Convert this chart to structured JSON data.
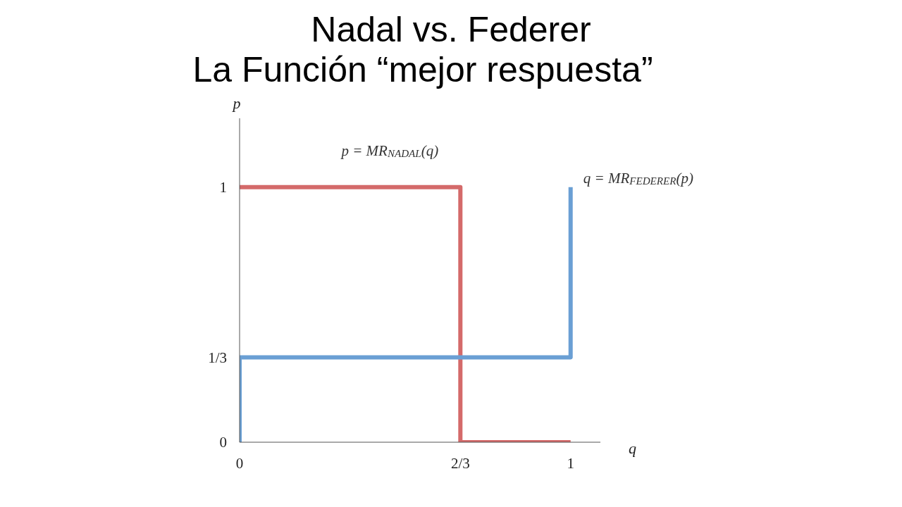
{
  "chart_data": {
    "type": "line",
    "title": "Nadal vs. Federer",
    "subtitle": "La Función “mejor respuesta”",
    "xlabel": "q",
    "ylabel": "p",
    "xlim": [
      0,
      1.09
    ],
    "ylim": [
      0,
      1.27
    ],
    "xticks": [
      0,
      {
        "value": 0.667,
        "label": "2/3"
      },
      1
    ],
    "yticks": [
      0,
      {
        "value": 0.333,
        "label": "1/3"
      },
      1
    ],
    "grid": false,
    "legend": false,
    "marker": "none",
    "line_style": "solid",
    "series": [
      {
        "name": "p = MR$_{NADAL}$(q)",
        "color": "#d46a6a",
        "x": [
          0,
          0.667,
          0.667,
          1
        ],
        "values": [
          1,
          1,
          0,
          0
        ]
      },
      {
        "name": "q = MR$_{FEDERER}$(p)",
        "color": "#6a9fd4",
        "x": [
          0,
          0,
          1,
          1
        ],
        "values": [
          0,
          0.333,
          0.333,
          1
        ]
      }
    ]
  }
}
